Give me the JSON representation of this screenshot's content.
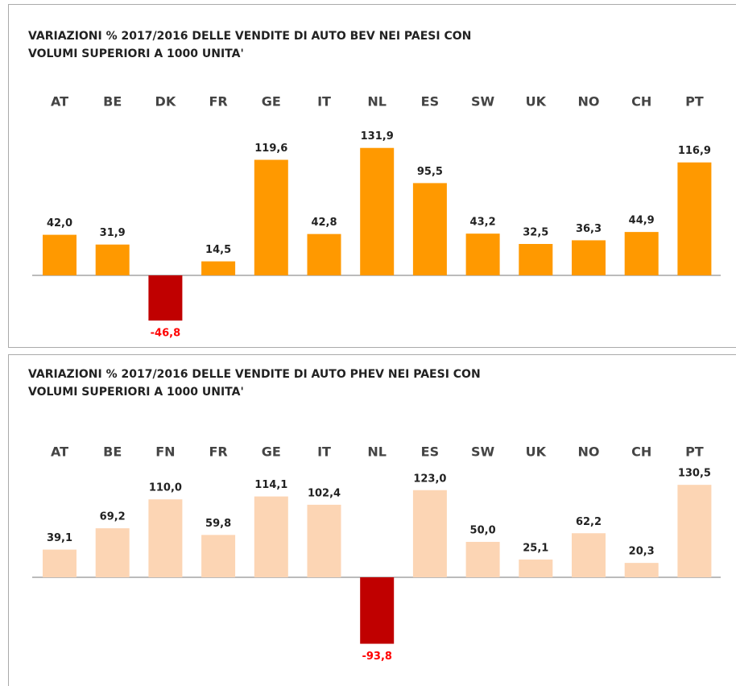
{
  "chart_data": [
    {
      "type": "bar",
      "title": [
        "VARIAZIONI % 2017/2016 DELLE VENDITE DI AUTO BEV NEI PAESI CON",
        "VOLUMI SUPERIORI A 1000 UNITA'"
      ],
      "categories": [
        "AT",
        "BE",
        "DK",
        "FR",
        "GE",
        "IT",
        "NL",
        "ES",
        "SW",
        "UK",
        "NO",
        "CH",
        "PT"
      ],
      "values": [
        42.0,
        31.9,
        -46.8,
        14.5,
        119.6,
        42.8,
        131.9,
        95.5,
        43.2,
        32.5,
        36.3,
        44.9,
        116.9
      ],
      "value_labels": [
        "42,0",
        "31,9",
        "-46,8",
        "14,5",
        "119,6",
        "42,8",
        "131,9",
        "95,5",
        "43,2",
        "32,5",
        "36,3",
        "44,9",
        "116,9"
      ],
      "color": "#ff9900",
      "negative_color": "#c00000",
      "negative_label_color": "#ff0000",
      "ylim": [
        -50,
        135
      ]
    },
    {
      "type": "bar",
      "title": [
        "VARIAZIONI % 2017/2016 DELLE VENDITE DI AUTO PHEV NEI PAESI CON",
        "VOLUMI SUPERIORI A 1000 UNITA'"
      ],
      "categories": [
        "AT",
        "BE",
        "FN",
        "FR",
        "GE",
        "IT",
        "NL",
        "ES",
        "SW",
        "UK",
        "NO",
        "CH",
        "PT"
      ],
      "values": [
        39.1,
        69.2,
        110.0,
        59.8,
        114.1,
        102.4,
        -93.8,
        123.0,
        50.0,
        25.1,
        62.2,
        20.3,
        130.5
      ],
      "value_labels": [
        "39,1",
        "69,2",
        "110,0",
        "59,8",
        "114,1",
        "102,4",
        "-93,8",
        "123,0",
        "50,0",
        "25,1",
        "62,2",
        "20,3",
        "130,5"
      ],
      "color": "#fcd5b4",
      "negative_color": "#c00000",
      "negative_label_color": "#ff0000",
      "ylim": [
        -100,
        135
      ]
    }
  ]
}
